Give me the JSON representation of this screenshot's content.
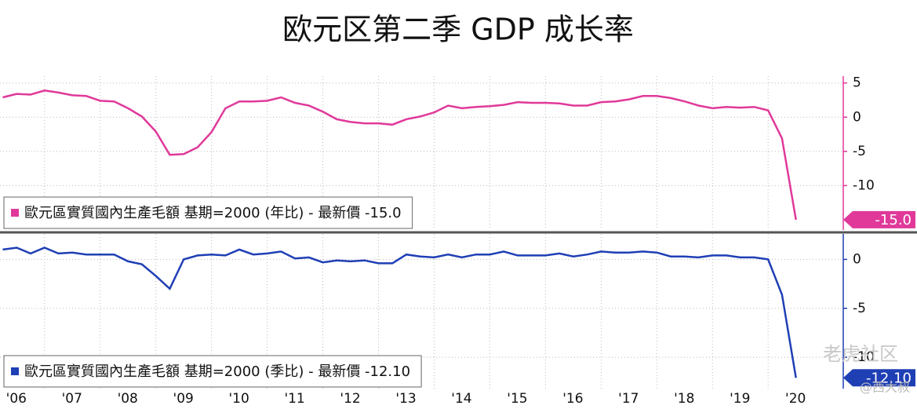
{
  "chart_data": [
    {
      "type": "line",
      "title": "欧元区第二季 GDP 成长率",
      "ylim": [
        -16.5,
        6
      ],
      "yticks": [
        5,
        0,
        -5,
        -10
      ],
      "series": [
        {
          "name": "歐元區實質國內生產毛額 基期=2000 (年比) - 最新價 -15.0",
          "color": "#e0399a",
          "x": [
            2006.25,
            2006.5,
            2006.75,
            2007,
            2007.25,
            2007.5,
            2007.75,
            2008,
            2008.25,
            2008.5,
            2008.75,
            2009,
            2009.25,
            2009.5,
            2009.75,
            2010,
            2010.25,
            2010.5,
            2010.75,
            2011,
            2011.25,
            2011.5,
            2011.75,
            2012,
            2012.25,
            2012.5,
            2012.75,
            2013,
            2013.25,
            2013.5,
            2013.75,
            2014,
            2014.25,
            2014.5,
            2014.75,
            2015,
            2015.25,
            2015.5,
            2015.75,
            2016,
            2016.25,
            2016.5,
            2016.75,
            2017,
            2017.25,
            2017.5,
            2017.75,
            2018,
            2018.25,
            2018.5,
            2018.75,
            2019,
            2019.25,
            2019.5,
            2019.75,
            2020,
            2020.25,
            2020.5
          ],
          "values": [
            2.9,
            3.4,
            3.3,
            3.9,
            3.6,
            3.2,
            3.1,
            2.4,
            2.3,
            1.3,
            0.1,
            -2.1,
            -5.5,
            -5.4,
            -4.4,
            -2.2,
            1.3,
            2.3,
            2.3,
            2.4,
            2.9,
            2.1,
            1.7,
            0.8,
            -0.3,
            -0.7,
            -0.9,
            -0.9,
            -1.1,
            -0.3,
            0.1,
            0.7,
            1.7,
            1.3,
            1.5,
            1.6,
            1.8,
            2.2,
            2.1,
            2.1,
            2.0,
            1.7,
            1.7,
            2.2,
            2.3,
            2.6,
            3.1,
            3.1,
            2.8,
            2.3,
            1.7,
            1.3,
            1.5,
            1.4,
            1.5,
            1.0,
            -3.1,
            -15.0
          ],
          "value_labels": [
            null,
            null,
            null,
            null,
            null,
            null,
            null,
            null,
            null,
            null,
            null,
            null,
            null,
            null,
            null,
            null,
            null,
            null,
            null,
            null,
            null,
            null,
            null,
            null,
            null,
            null,
            null,
            null,
            null,
            null,
            null,
            null,
            null,
            null,
            null,
            null,
            null,
            null,
            null,
            null,
            null,
            null,
            null,
            null,
            null,
            null,
            null,
            null,
            null,
            null,
            null,
            null,
            null,
            null,
            null,
            null,
            null,
            "-15.0"
          ]
        }
      ]
    },
    {
      "type": "line",
      "xlim": [
        2006.2,
        2021.35
      ],
      "xticks": [
        {
          "value": 2006,
          "label": "'06"
        },
        {
          "value": 2007,
          "label": "'07"
        },
        {
          "value": 2008,
          "label": "'08"
        },
        {
          "value": 2009,
          "label": "'09"
        },
        {
          "value": 2010,
          "label": "'10"
        },
        {
          "value": 2011,
          "label": "'11"
        },
        {
          "value": 2012,
          "label": "'12"
        },
        {
          "value": 2013,
          "label": "'13"
        },
        {
          "value": 2014,
          "label": "'14"
        },
        {
          "value": 2015,
          "label": "'15"
        },
        {
          "value": 2016,
          "label": "'16"
        },
        {
          "value": 2017,
          "label": "'17"
        },
        {
          "value": 2018,
          "label": "'18"
        },
        {
          "value": 2019,
          "label": "'19"
        },
        {
          "value": 2020,
          "label": "'20"
        }
      ],
      "ylim": [
        -13.2,
        2.6
      ],
      "yticks": [
        0,
        -5,
        -10
      ],
      "series": [
        {
          "name": "歐元區實質國內生產毛額 基期=2000 (季比) - 最新價 -12.10",
          "color": "#1f3fb5",
          "x": [
            2006.25,
            2006.5,
            2006.75,
            2007,
            2007.25,
            2007.5,
            2007.75,
            2008,
            2008.25,
            2008.5,
            2008.75,
            2009,
            2009.25,
            2009.5,
            2009.75,
            2010,
            2010.25,
            2010.5,
            2010.75,
            2011,
            2011.25,
            2011.5,
            2011.75,
            2012,
            2012.25,
            2012.5,
            2012.75,
            2013,
            2013.25,
            2013.5,
            2013.75,
            2014,
            2014.25,
            2014.5,
            2014.75,
            2015,
            2015.25,
            2015.5,
            2015.75,
            2016,
            2016.25,
            2016.5,
            2016.75,
            2017,
            2017.25,
            2017.5,
            2017.75,
            2018,
            2018.25,
            2018.5,
            2018.75,
            2019,
            2019.25,
            2019.5,
            2019.75,
            2020,
            2020.25,
            2020.5
          ],
          "values": [
            1.0,
            1.2,
            0.6,
            1.2,
            0.6,
            0.7,
            0.5,
            0.5,
            0.5,
            -0.2,
            -0.5,
            -1.7,
            -3.0,
            0.0,
            0.4,
            0.5,
            0.4,
            1.0,
            0.5,
            0.6,
            0.8,
            0.1,
            0.2,
            -0.3,
            -0.1,
            -0.2,
            -0.1,
            -0.4,
            -0.4,
            0.5,
            0.3,
            0.2,
            0.5,
            0.2,
            0.5,
            0.5,
            0.8,
            0.4,
            0.4,
            0.4,
            0.6,
            0.3,
            0.5,
            0.8,
            0.7,
            0.7,
            0.8,
            0.7,
            0.3,
            0.3,
            0.2,
            0.4,
            0.4,
            0.2,
            0.2,
            0.0,
            -3.6,
            -12.1
          ],
          "value_labels": [
            null,
            null,
            null,
            null,
            null,
            null,
            null,
            null,
            null,
            null,
            null,
            null,
            null,
            null,
            null,
            null,
            null,
            null,
            null,
            null,
            null,
            null,
            null,
            null,
            null,
            null,
            null,
            null,
            null,
            null,
            null,
            null,
            null,
            null,
            null,
            null,
            null,
            null,
            null,
            null,
            null,
            null,
            null,
            null,
            null,
            null,
            null,
            null,
            null,
            null,
            null,
            null,
            null,
            null,
            null,
            null,
            null,
            "-12.10"
          ]
        }
      ]
    }
  ],
  "watermark": [
    "老虎社区",
    "@西大叔"
  ]
}
